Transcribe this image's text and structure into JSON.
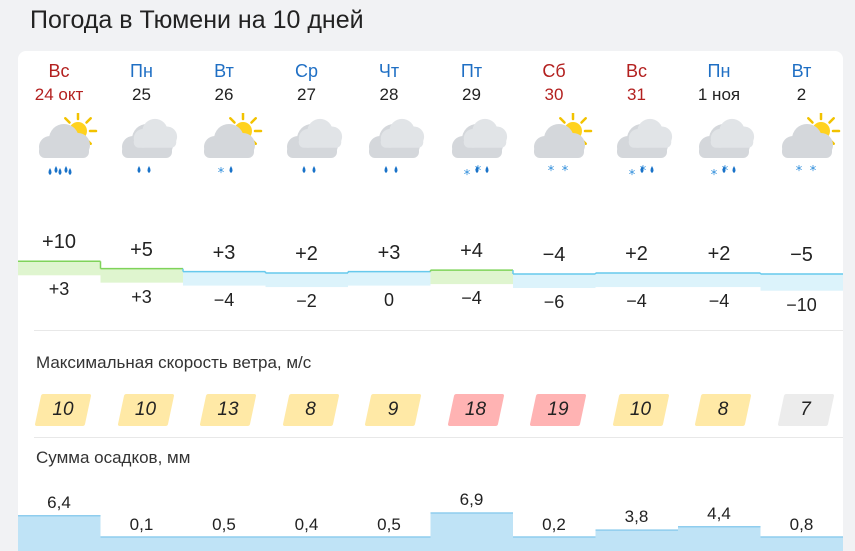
{
  "title": "Погода в Тюмени на 10 дней",
  "days": [
    {
      "name": "Вс",
      "date": "24 окт",
      "weekend": true,
      "icon": "partly-cloudy-rain-icon",
      "tmax": "+10",
      "tmin": "+3",
      "wind": "10",
      "wind_level": "yellow",
      "precip": "6,4",
      "precip_mm": 6.4
    },
    {
      "name": "Пн",
      "date": "25",
      "weekend": false,
      "icon": "cloudy-rain-icon",
      "tmax": "+5",
      "tmin": "+3",
      "wind": "10",
      "wind_level": "yellow",
      "precip": "0,1",
      "precip_mm": 0.1
    },
    {
      "name": "Вт",
      "date": "26",
      "weekend": false,
      "icon": "partly-cloudy-snow-rain-icon",
      "tmax": "+3",
      "tmin": "−4",
      "wind": "13",
      "wind_level": "yellow",
      "precip": "0,5",
      "precip_mm": 0.5
    },
    {
      "name": "Ср",
      "date": "27",
      "weekend": false,
      "icon": "cloudy-rain-icon",
      "tmax": "+2",
      "tmin": "−2",
      "wind": "8",
      "wind_level": "yellow",
      "precip": "0,4",
      "precip_mm": 0.4
    },
    {
      "name": "Чт",
      "date": "28",
      "weekend": false,
      "icon": "cloudy-rain-icon",
      "tmax": "+3",
      "tmin": "0",
      "wind": "9",
      "wind_level": "yellow",
      "precip": "0,5",
      "precip_mm": 0.5
    },
    {
      "name": "Пт",
      "date": "29",
      "weekend": false,
      "icon": "cloudy-rain-snow-icon",
      "tmax": "+4",
      "tmin": "−4",
      "wind": "18",
      "wind_level": "red",
      "precip": "6,9",
      "precip_mm": 6.9
    },
    {
      "name": "Сб",
      "date": "30",
      "weekend": true,
      "icon": "partly-cloudy-snow-icon",
      "tmax": "−4",
      "tmin": "−6",
      "wind": "19",
      "wind_level": "red",
      "precip": "0,2",
      "precip_mm": 0.2
    },
    {
      "name": "Вс",
      "date": "31",
      "weekend": true,
      "icon": "cloudy-rain-snow-icon",
      "tmax": "+2",
      "tmin": "−4",
      "wind": "10",
      "wind_level": "yellow",
      "precip": "3,8",
      "precip_mm": 3.8
    },
    {
      "name": "Пн",
      "date": "1 ноя",
      "weekend": false,
      "icon": "cloudy-rain-snow-icon",
      "tmax": "+2",
      "tmin": "−4",
      "wind": "8",
      "wind_level": "yellow",
      "precip": "4,4",
      "precip_mm": 4.4
    },
    {
      "name": "Вт",
      "date": "2",
      "weekend": false,
      "icon": "partly-cloudy-snow-icon",
      "tmax": "−5",
      "tmin": "−10",
      "wind": "7",
      "wind_level": "gray",
      "precip": "0,8",
      "precip_mm": 0.8
    }
  ],
  "wind_section": {
    "label": "Максимальная скорость ветра, м/с"
  },
  "precip_section": {
    "label": "Сумма осадков, мм"
  },
  "colors": {
    "weekday": "#1f6fc4",
    "weekend": "#b3201f",
    "warm": "#dff5cf",
    "warm_line": "#7fd35a",
    "cold": "#dcf3fb",
    "cold_line": "#67c9ec",
    "wind_yellow": "#ffe9a6",
    "wind_red": "#ffb3b3",
    "wind_gray": "#ececec",
    "precip": "#bfe3f6",
    "precip_line": "#8fcdee"
  }
}
